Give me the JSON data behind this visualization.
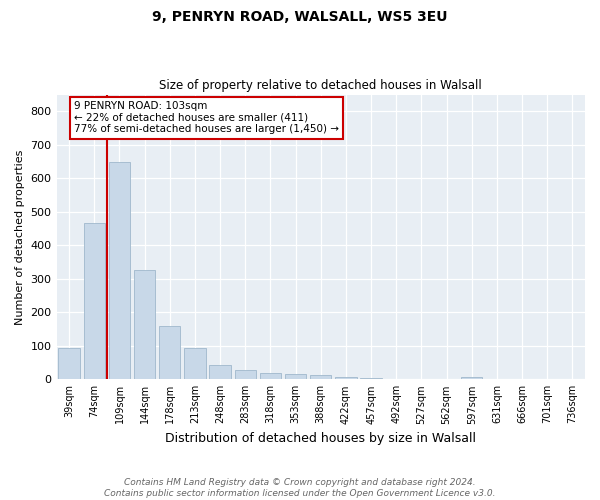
{
  "title1": "9, PENRYN ROAD, WALSALL, WS5 3EU",
  "title2": "Size of property relative to detached houses in Walsall",
  "xlabel": "Distribution of detached houses by size in Walsall",
  "ylabel": "Number of detached properties",
  "categories": [
    "39sqm",
    "74sqm",
    "109sqm",
    "144sqm",
    "178sqm",
    "213sqm",
    "248sqm",
    "283sqm",
    "318sqm",
    "353sqm",
    "388sqm",
    "422sqm",
    "457sqm",
    "492sqm",
    "527sqm",
    "562sqm",
    "597sqm",
    "631sqm",
    "666sqm",
    "701sqm",
    "736sqm"
  ],
  "values": [
    93,
    467,
    648,
    325,
    158,
    93,
    42,
    28,
    18,
    16,
    13,
    8,
    5,
    0,
    0,
    0,
    7,
    0,
    0,
    0,
    0
  ],
  "bar_color": "#c8d8e8",
  "bar_edge_color": "#a0b8cc",
  "vline_index": 1.5,
  "vline_color": "#cc0000",
  "annotation_text": "9 PENRYN ROAD: 103sqm\n← 22% of detached houses are smaller (411)\n77% of semi-detached houses are larger (1,450) →",
  "annotation_box_color": "#ffffff",
  "annotation_box_edge_color": "#cc0000",
  "ylim": [
    0,
    850
  ],
  "yticks": [
    0,
    100,
    200,
    300,
    400,
    500,
    600,
    700,
    800
  ],
  "footer": "Contains HM Land Registry data © Crown copyright and database right 2024.\nContains public sector information licensed under the Open Government Licence v3.0.",
  "bg_color": "#e8eef4"
}
